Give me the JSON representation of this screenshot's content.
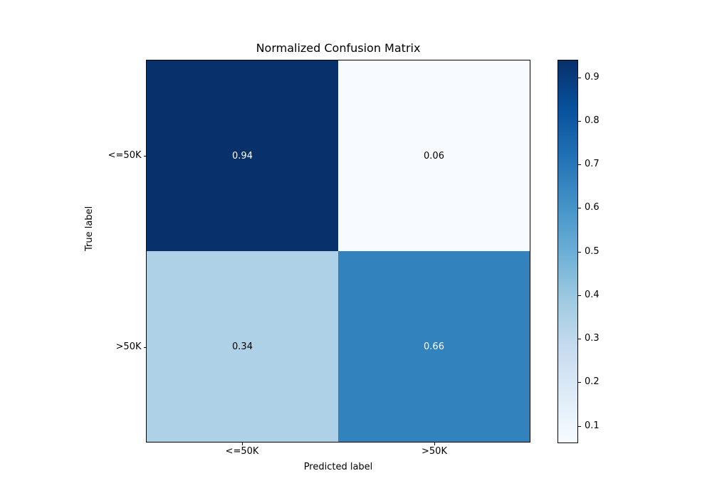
{
  "chart_data": {
    "type": "heatmap",
    "title": "Normalized Confusion Matrix",
    "xlabel": "Predicted label",
    "ylabel": "True label",
    "x_categories": [
      "<=50K",
      ">50K"
    ],
    "y_categories": [
      "<=50K",
      ">50K"
    ],
    "values": [
      [
        0.94,
        0.06
      ],
      [
        0.34,
        0.66
      ]
    ],
    "cell_labels": [
      [
        "0.94",
        "0.06"
      ],
      [
        "0.34",
        "0.66"
      ]
    ],
    "cell_colors": [
      [
        "#08306b",
        "#f7fbff"
      ],
      [
        "#aed1e7",
        "#3282bd"
      ]
    ],
    "cell_text_colors": [
      [
        "#ffffff",
        "#000000"
      ],
      [
        "#000000",
        "#ffffff"
      ]
    ],
    "colormap": "Blues",
    "grid": false,
    "legend_position": "right-colorbar",
    "colorbar": {
      "vmin": 0.06,
      "vmax": 0.94,
      "ticks": [
        0.9,
        0.8,
        0.7,
        0.6,
        0.5,
        0.4,
        0.3,
        0.2,
        0.1
      ],
      "tick_labels": [
        "0.9",
        "0.8",
        "0.7",
        "0.6",
        "0.5",
        "0.4",
        "0.3",
        "0.2",
        "0.1"
      ],
      "gradient_stops_bottom_to_top": [
        "#f7fbff",
        "#deebf7",
        "#c6dbef",
        "#9ecae1",
        "#6baed6",
        "#4292c6",
        "#2171b5",
        "#08519c",
        "#08306b"
      ]
    }
  }
}
